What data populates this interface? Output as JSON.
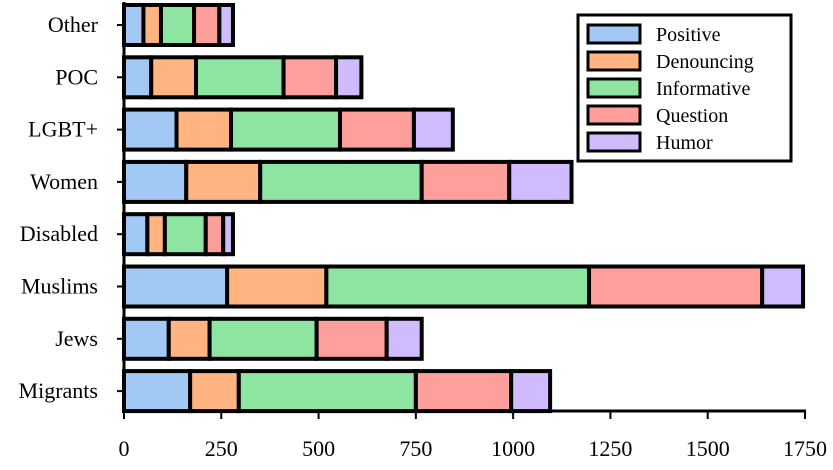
{
  "chart_data": {
    "type": "bar",
    "orientation": "horizontal",
    "stacked": true,
    "categories": [
      "Other",
      "POC",
      "LGBT+",
      "Women",
      "Disabled",
      "Muslims",
      "Jews",
      "Migrants"
    ],
    "series": [
      {
        "name": "Positive",
        "color": "#a1c9f4",
        "values": [
          50,
          70,
          135,
          160,
          60,
          265,
          115,
          170
        ]
      },
      {
        "name": "Denouncing",
        "color": "#ffb482",
        "values": [
          45,
          115,
          140,
          190,
          45,
          255,
          105,
          125
        ]
      },
      {
        "name": "Informative",
        "color": "#8de5a1",
        "values": [
          85,
          225,
          280,
          415,
          105,
          675,
          275,
          455
        ]
      },
      {
        "name": "Question",
        "color": "#ff9f9b",
        "values": [
          65,
          135,
          190,
          225,
          45,
          445,
          180,
          245
        ]
      },
      {
        "name": "Humor",
        "color": "#d0bbff",
        "values": [
          35,
          65,
          100,
          160,
          25,
          105,
          90,
          100
        ]
      }
    ],
    "xlim": [
      0,
      1750
    ],
    "xticks": [
      "0",
      "250",
      "500",
      "750",
      "1000",
      "1250",
      "1500",
      "1750"
    ],
    "legend_position": "top-right",
    "grid": false,
    "title": "",
    "xlabel": "",
    "ylabel": ""
  }
}
